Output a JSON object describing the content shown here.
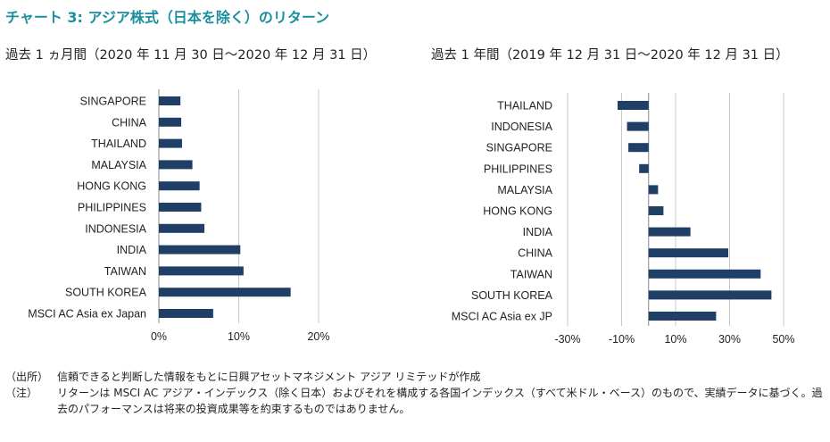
{
  "title": "チャート 3: アジア株式（日本を除く）のリターン",
  "chart_data": [
    {
      "type": "bar",
      "orientation": "horizontal",
      "title": "過去 1 ヵ月間（2020 年 11 月 30 日～2020 年 12 月 31 日）",
      "categories": [
        "SINGAPORE",
        "CHINA",
        "THAILAND",
        "MALAYSIA",
        "HONG KONG",
        "PHILIPPINES",
        "INDONESIA",
        "INDIA",
        "TAIWAN",
        "SOUTH KOREA",
        "MSCI AC Asia ex Japan"
      ],
      "values": [
        2.7,
        2.8,
        2.9,
        4.2,
        5.1,
        5.3,
        5.7,
        10.2,
        10.6,
        16.5,
        6.8
      ],
      "xlim": [
        0,
        20
      ],
      "xticks": [
        0,
        10,
        20
      ],
      "tick_labels": [
        "0%",
        "10%",
        "20%"
      ],
      "grid": true,
      "bar_color": "#1f3f66"
    },
    {
      "type": "bar",
      "orientation": "horizontal",
      "title": "過去 1 年間（2019 年 12 月 31 日～2020 年 12 月 31 日）",
      "categories": [
        "THAILAND",
        "INDONESIA",
        "SINGAPORE",
        "PHILIPPINES",
        "MALAYSIA",
        "HONG KONG",
        "INDIA",
        "CHINA",
        "TAIWAN",
        "SOUTH KOREA",
        "MSCI AC Asia ex JP"
      ],
      "values": [
        -11.5,
        -8.0,
        -7.5,
        -3.5,
        3.5,
        5.5,
        15.5,
        29.5,
        41.5,
        45.5,
        25.0
      ],
      "xlim": [
        -30,
        50
      ],
      "xticks": [
        -30,
        -10,
        10,
        30,
        50
      ],
      "tick_labels": [
        "-30%",
        "-10%",
        "10%",
        "30%",
        "50%"
      ],
      "grid": true,
      "bar_color": "#1f3f66"
    }
  ],
  "notes": [
    {
      "label": "（出所）",
      "text": "信頼できると判断した情報をもとに日興アセットマネジメント アジア リミテッドが作成"
    },
    {
      "label": "（注）",
      "text": "リターンは MSCI AC アジア・インデックス（除く日本）およびそれを構成する各国インデックス（すべて米ドル・ベース）のもので、実績データに基づく。過去のパフォーマンスは将来の投資成果等を約束するものではありません。"
    }
  ],
  "colors": {
    "title": "#1a8fa0",
    "bar": "#1f3f66",
    "grid": "#c8c8c8"
  }
}
